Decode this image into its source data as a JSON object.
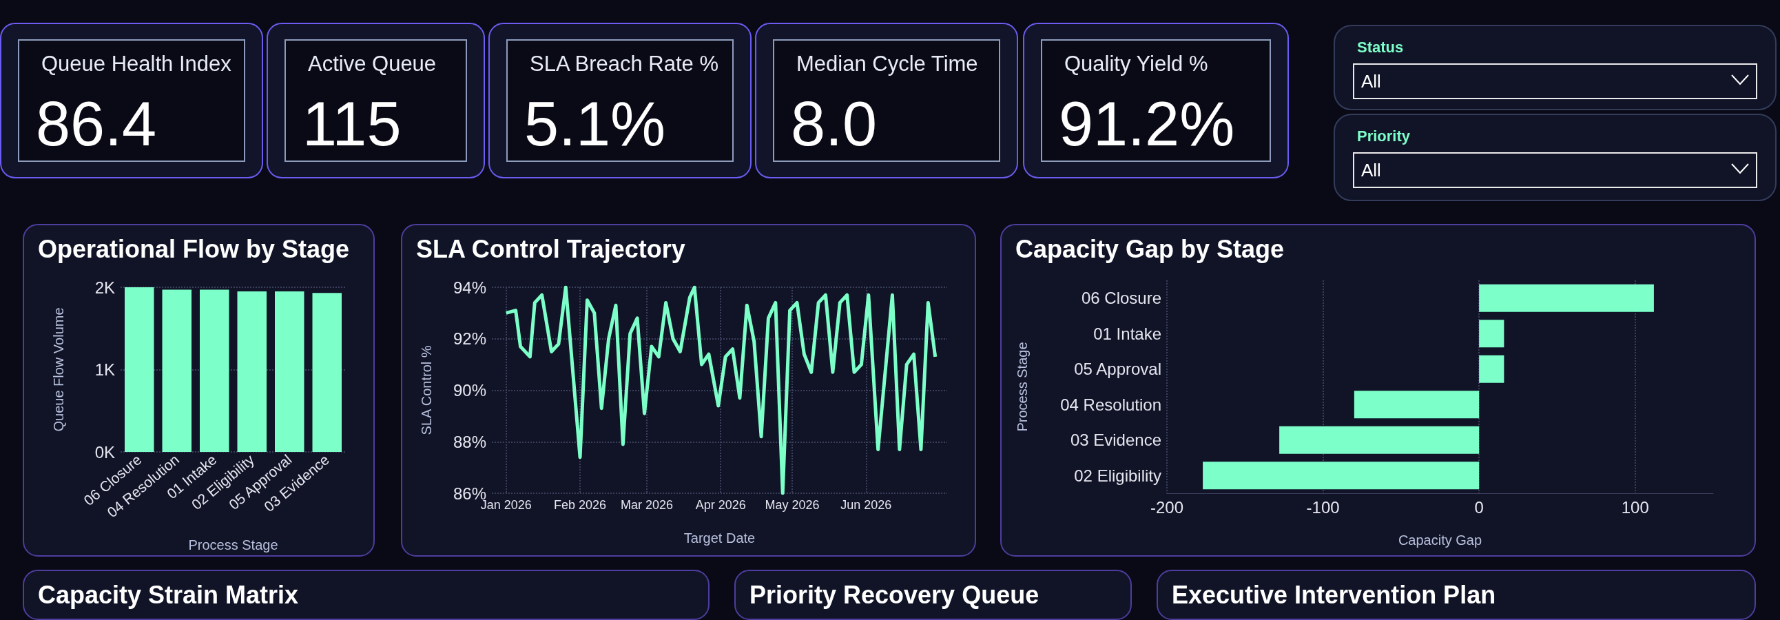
{
  "chart_data": [
    {
      "type": "other",
      "title": "Queue Health Index",
      "annotations": [
        "86.4"
      ]
    },
    {
      "type": "other",
      "title": "Active Queue",
      "annotations": [
        "115"
      ]
    },
    {
      "type": "other",
      "title": "SLA Breach Rate %",
      "annotations": [
        "5.1%"
      ]
    },
    {
      "type": "other",
      "title": "Median Cycle Time",
      "annotations": [
        "8.0"
      ]
    },
    {
      "type": "other",
      "title": "Quality Yield %",
      "annotations": [
        "91.2%"
      ]
    },
    {
      "type": "other",
      "title": "Status",
      "annotations": [
        "All"
      ]
    },
    {
      "type": "other",
      "title": "Priority",
      "annotations": [
        "All"
      ]
    },
    {
      "type": "bar",
      "title": "Operational Flow by Stage",
      "xlabel": "Process Stage",
      "ylabel": "Queue Flow Volume",
      "categories": [
        "06 Closure",
        "04 Resolution",
        "01 Intake",
        "02 Eligibility",
        "05 Approval",
        "03 Evidence"
      ],
      "values": [
        2000,
        1970,
        1970,
        1950,
        1950,
        1930
      ],
      "color": "#7dffc9",
      "ylim": [
        0,
        2000
      ],
      "yticks": [
        {
          "value": 0,
          "label": "0K"
        },
        {
          "value": 1000,
          "label": "1K"
        },
        {
          "value": 2000,
          "label": "2K"
        }
      ],
      "grid": "y"
    },
    {
      "type": "line",
      "title": "SLA Control Trajectory",
      "xlabel": "Target Date",
      "ylabel": "SLA Control %",
      "x": [
        "2026-01-01",
        "2026-01-05",
        "2026-01-07",
        "2026-01-11",
        "2026-01-13",
        "2026-01-16",
        "2026-01-20",
        "2026-01-23",
        "2026-01-26",
        "2026-02-01",
        "2026-02-04",
        "2026-02-07",
        "2026-02-10",
        "2026-02-13",
        "2026-02-16",
        "2026-02-19",
        "2026-02-22",
        "2026-02-25",
        "2026-02-28",
        "2026-03-03",
        "2026-03-06",
        "2026-03-09",
        "2026-03-12",
        "2026-03-15",
        "2026-03-19",
        "2026-03-21",
        "2026-03-24",
        "2026-03-27",
        "2026-03-31",
        "2026-04-03",
        "2026-04-06",
        "2026-04-09",
        "2026-04-12",
        "2026-04-15",
        "2026-04-18",
        "2026-04-21",
        "2026-04-24",
        "2026-04-27",
        "2026-04-30",
        "2026-05-03",
        "2026-05-06",
        "2026-05-09",
        "2026-05-12",
        "2026-05-15",
        "2026-05-18",
        "2026-05-21",
        "2026-05-24",
        "2026-05-27",
        "2026-05-30",
        "2026-06-02",
        "2026-06-06",
        "2026-06-12",
        "2026-06-15",
        "2026-06-18",
        "2026-06-21",
        "2026-06-24",
        "2026-06-27",
        "2026-06-30"
      ],
      "values": [
        93.0,
        93.1,
        91.7,
        91.3,
        93.4,
        93.7,
        91.5,
        91.8,
        94.0,
        87.4,
        93.5,
        93.0,
        89.3,
        92.0,
        93.3,
        87.9,
        92.2,
        92.8,
        89.1,
        91.7,
        91.3,
        93.4,
        92.0,
        91.5,
        93.6,
        94.0,
        91.0,
        91.4,
        89.4,
        91.3,
        91.6,
        89.7,
        93.3,
        91.9,
        88.2,
        92.8,
        93.4,
        86.0,
        93.1,
        93.4,
        91.4,
        90.7,
        93.4,
        93.7,
        90.7,
        93.4,
        93.7,
        90.7,
        91.0,
        93.7,
        87.7,
        93.7,
        87.7,
        91.0,
        91.4,
        87.7,
        93.4,
        91.3
      ],
      "color": "#7dffc9",
      "marker": "none",
      "xlim": [
        "2025-12-26",
        "2026-07-05"
      ],
      "xticks": [
        {
          "value": "2026-01-01",
          "label": "Jan 2026"
        },
        {
          "value": "2026-02-01",
          "label": "Feb 2026"
        },
        {
          "value": "2026-03-01",
          "label": "Mar 2026"
        },
        {
          "value": "2026-04-01",
          "label": "Apr 2026"
        },
        {
          "value": "2026-05-01",
          "label": "May 2026"
        },
        {
          "value": "2026-06-01",
          "label": "Jun 2026"
        }
      ],
      "ylim": [
        86,
        94
      ],
      "yticks": [
        {
          "value": 86,
          "label": "86%"
        },
        {
          "value": 88,
          "label": "88%"
        },
        {
          "value": 90,
          "label": "90%"
        },
        {
          "value": 92,
          "label": "92%"
        },
        {
          "value": 94,
          "label": "94%"
        }
      ],
      "grid": true
    },
    {
      "type": "bar",
      "orientation": "horizontal",
      "title": "Capacity Gap by Stage",
      "xlabel": "Capacity Gap",
      "ylabel": "Process Stage",
      "categories": [
        "06 Closure",
        "01 Intake",
        "05 Approval",
        "04 Resolution",
        "03 Evidence",
        "02 Eligibility"
      ],
      "values": [
        112,
        16,
        16,
        -80,
        -128,
        -177
      ],
      "color": "#7dffc9",
      "xlim": [
        -200,
        150
      ],
      "xticks": [
        -200,
        -100,
        0,
        100
      ],
      "grid": "x"
    },
    {
      "type": "other",
      "title": "Capacity Strain Matrix"
    },
    {
      "type": "other",
      "title": "Priority Recovery Queue"
    },
    {
      "type": "other",
      "title": "Executive Intervention Plan"
    }
  ]
}
